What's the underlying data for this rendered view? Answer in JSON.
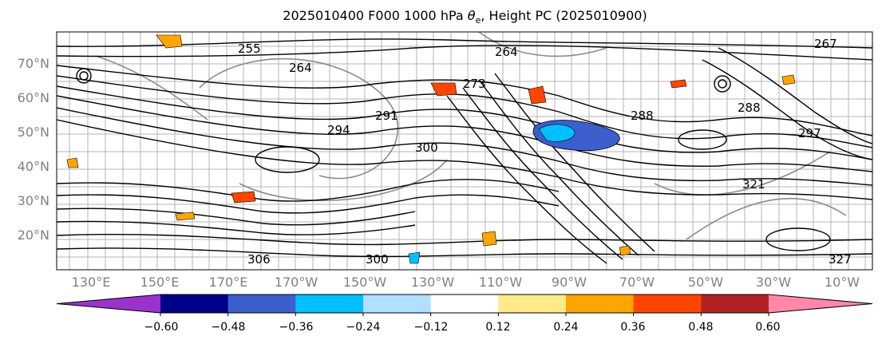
{
  "title": {
    "prefix": "2025010400 F000 1000 hPa ",
    "symbol": "θ",
    "subscript": "e",
    "suffix": ", Height PC (2025010900)"
  },
  "lat_labels": [
    "70°N",
    "60°N",
    "50°N",
    "40°N",
    "30°N",
    "20°N"
  ],
  "lon_labels": [
    "130°E",
    "150°E",
    "170°E",
    "170°W",
    "150°W",
    "130°W",
    "110°W",
    "90°W",
    "70°W",
    "50°W",
    "30°W",
    "10°W"
  ],
  "contour_labels": [
    "255",
    "264",
    "294",
    "300",
    "288",
    "288",
    "297",
    "291",
    "300",
    "321",
    "327",
    "306",
    "273",
    "264",
    "267"
  ],
  "colorbar": {
    "ticks": [
      "−0.60",
      "−0.48",
      "−0.36",
      "−0.24",
      "−0.12",
      "0.12",
      "0.24",
      "0.36",
      "0.48",
      "0.60"
    ],
    "colors": [
      "#9933cc",
      "#00008b",
      "#3c5fcd",
      "#00bfff",
      "#b0e0ff",
      "#ffffff",
      "#ffea8a",
      "#ffa500",
      "#ff4500",
      "#b22222",
      "#ff88aa"
    ]
  }
}
